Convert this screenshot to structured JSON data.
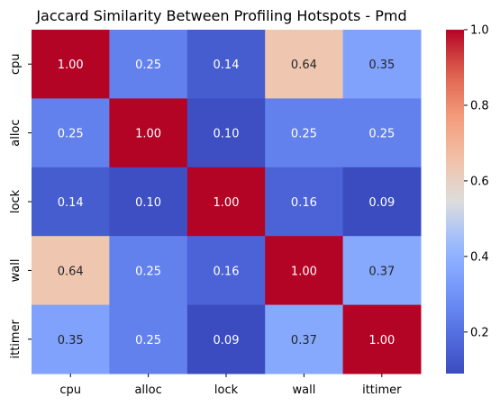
{
  "chart_data": {
    "type": "heatmap",
    "title": "Jaccard Similarity Between Profiling Hotspots - Pmd",
    "x_categories": [
      "cpu",
      "alloc",
      "lock",
      "wall",
      "ittimer"
    ],
    "y_categories": [
      "cpu",
      "alloc",
      "lock",
      "wall",
      "ittimer"
    ],
    "values": [
      [
        1.0,
        0.25,
        0.14,
        0.64,
        0.35
      ],
      [
        0.25,
        1.0,
        0.1,
        0.25,
        0.25
      ],
      [
        0.14,
        0.1,
        1.0,
        0.16,
        0.09
      ],
      [
        0.64,
        0.25,
        0.16,
        1.0,
        0.37
      ],
      [
        0.35,
        0.25,
        0.09,
        0.37,
        1.0
      ]
    ],
    "value_format": "0.00",
    "colormap": "coolwarm",
    "colorbar": {
      "range": [
        0.09,
        1.0
      ],
      "ticks": [
        0.2,
        0.4,
        0.6,
        0.8,
        1.0
      ],
      "tick_labels": [
        "0.2",
        "0.4",
        "0.6",
        "0.8",
        "1.0"
      ]
    },
    "xlabel": "",
    "ylabel": "",
    "grid": false,
    "annotation_colors": {
      "light_cell_text": "#262626",
      "dark_cell_text": "#ffffff"
    }
  }
}
